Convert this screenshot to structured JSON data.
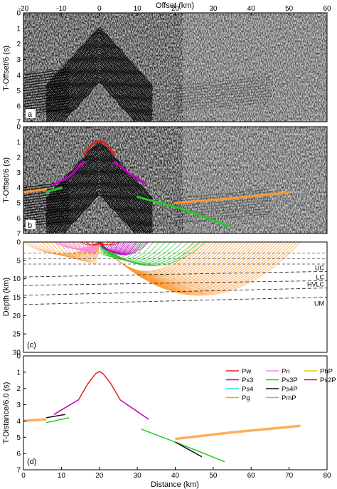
{
  "chart_data": [
    {
      "panel": "a",
      "type": "heatmap",
      "panel_label": "a",
      "xlabel": "Offset (km)",
      "ylabel": "T-Offset/6 (s)",
      "xlim": [
        -20,
        60
      ],
      "ylim": [
        7,
        0
      ],
      "xticks": [
        -20,
        -10,
        0,
        10,
        20,
        30,
        40,
        50,
        60
      ],
      "yticks": [
        0,
        1,
        2,
        3,
        4,
        5,
        6,
        7
      ]
    },
    {
      "panel": "b",
      "type": "heatmap",
      "panel_label": "b",
      "ylabel": "T-Offset/6 (s)",
      "xlim": [
        -20,
        60
      ],
      "ylim": [
        7,
        0
      ],
      "yticks": [
        0,
        1,
        2,
        3,
        4,
        5,
        6,
        7
      ],
      "picks": [
        {
          "name": "Pw",
          "color": "#e02020",
          "x": [
            -4,
            -2,
            -1,
            0,
            1,
            2,
            4
          ],
          "y": [
            1.8,
            1.2,
            1.0,
            0.95,
            1.0,
            1.2,
            1.8
          ]
        },
        {
          "name": "Ps3",
          "color": "#c000c0",
          "x": [
            -12,
            -8,
            -4
          ],
          "y": [
            3.8,
            3.3,
            2.3
          ]
        },
        {
          "name": "Ps3-right",
          "color": "#c000c0",
          "x": [
            4,
            8,
            12
          ],
          "y": [
            2.3,
            3.1,
            3.7
          ]
        },
        {
          "name": "Ps3P",
          "color": "#22cc22",
          "x": [
            -14,
            -10
          ],
          "y": [
            4.3,
            4.0
          ]
        },
        {
          "name": "Pg",
          "color": "#ff9933",
          "x": [
            -20,
            -14
          ],
          "y": [
            4.3,
            4.1
          ]
        },
        {
          "name": "Ps3P-far",
          "color": "#22cc22",
          "x": [
            10,
            22,
            34
          ],
          "y": [
            4.6,
            5.4,
            6.5
          ]
        },
        {
          "name": "Pg-far",
          "color": "#ff9933",
          "x": [
            20,
            35,
            50
          ],
          "y": [
            5.0,
            4.7,
            4.3
          ]
        }
      ]
    },
    {
      "panel": "c",
      "type": "line",
      "panel_label": "(c)",
      "ylabel": "Depth (km)",
      "xlim": [
        0,
        80
      ],
      "ylim": [
        30,
        0
      ],
      "yticks": [
        0,
        5,
        10,
        15,
        20,
        25,
        30
      ],
      "layers": [
        {
          "label": "UC",
          "x": [
            0,
            80
          ],
          "y": [
            9.5,
            8.0
          ]
        },
        {
          "label": "LC",
          "x": [
            0,
            80
          ],
          "y": [
            11.8,
            10.5
          ]
        },
        {
          "label": "HVLC",
          "x": [
            0,
            80
          ],
          "y": [
            14.5,
            12.5
          ]
        },
        {
          "label": "UM",
          "x": [
            0,
            80
          ],
          "y": [
            17.0,
            15.0
          ]
        }
      ],
      "shallow_layers": [
        {
          "x": [
            0,
            80
          ],
          "y": [
            3.0,
            3.0
          ]
        },
        {
          "x": [
            0,
            80
          ],
          "y": [
            4.5,
            4.5
          ]
        },
        {
          "x": [
            0,
            80
          ],
          "y": [
            6.0,
            6.0
          ]
        }
      ],
      "ray_fans": [
        {
          "name": "Pg-left",
          "color": "#ff9933",
          "source": 20,
          "x_start": 0,
          "x_end": 18,
          "depth": 6
        },
        {
          "name": "Pg-right",
          "color": "#ff9933",
          "source": 20,
          "x_start": 45,
          "x_end": 73,
          "depth": 14.5
        },
        {
          "name": "Ps3P",
          "color": "#22cc22",
          "source": 20,
          "x_start": 22,
          "x_end": 48,
          "depth": 6.5
        },
        {
          "name": "Ps3",
          "color": "#c000c0",
          "source": 20,
          "x_start": 23,
          "x_end": 33,
          "depth": 3.5
        },
        {
          "name": "Pn",
          "color": "#ff88dd",
          "source": 20,
          "x_start": 8,
          "x_end": 17,
          "depth": 3.2
        }
      ]
    },
    {
      "panel": "d",
      "type": "line",
      "panel_label": "(d)",
      "xlabel": "Distance (km)",
      "ylabel": "T-Distance/6.0 (s)",
      "xlim": [
        0,
        80
      ],
      "ylim": [
        7,
        0
      ],
      "xticks": [
        0,
        10,
        20,
        30,
        40,
        50,
        60,
        70,
        80
      ],
      "yticks": [
        0,
        1,
        2,
        3,
        4,
        5,
        6,
        7
      ],
      "legend": {
        "placement": "top-right",
        "entries": [
          {
            "name": "Pw",
            "color": "#e02020"
          },
          {
            "name": "Pn",
            "color": "#ff88dd"
          },
          {
            "name": "PhP",
            "color": "#ddcc00"
          },
          {
            "name": "Ps3",
            "color": "#c000c0"
          },
          {
            "name": "Ps3P",
            "color": "#22cc22"
          },
          {
            "name": "Ps2P",
            "color": "#a02080"
          },
          {
            "name": "Ps4",
            "color": "#33dddd"
          },
          {
            "name": "Ps4P",
            "color": "#111111"
          },
          {
            "name": "Pg",
            "color": "#ff9933"
          },
          {
            "name": "PmP",
            "color": "#99cc33"
          }
        ]
      },
      "series": [
        {
          "name": "Pw",
          "color": "#e02020",
          "x": [
            14.5,
            17,
            19,
            20,
            21,
            23,
            25.5
          ],
          "y": [
            2.7,
            1.7,
            1.1,
            0.95,
            1.1,
            1.7,
            2.7
          ]
        },
        {
          "name": "Ps3",
          "color": "#c000c0",
          "x": [
            8,
            14.5
          ],
          "y": [
            3.6,
            2.7
          ]
        },
        {
          "name": "Ps3-right",
          "color": "#c000c0",
          "x": [
            25.5,
            33
          ],
          "y": [
            2.7,
            3.9
          ]
        },
        {
          "name": "Ps3P",
          "color": "#22cc22",
          "x": [
            6,
            12
          ],
          "y": [
            4.1,
            3.8
          ]
        },
        {
          "name": "Ps3P-far",
          "color": "#22cc22",
          "x": [
            31,
            40,
            53
          ],
          "y": [
            4.5,
            5.3,
            6.5
          ]
        },
        {
          "name": "Ps4P",
          "color": "#111111",
          "x": [
            6,
            11
          ],
          "y": [
            3.8,
            3.6
          ]
        },
        {
          "name": "Ps4P-far",
          "color": "#111111",
          "x": [
            40,
            47
          ],
          "y": [
            5.3,
            6.2
          ]
        },
        {
          "name": "Pg",
          "color": "#ff9933",
          "x": [
            0,
            6
          ],
          "y": [
            4.0,
            3.9
          ]
        },
        {
          "name": "Pg-far",
          "color": "#ff9933",
          "x": [
            40,
            55,
            73
          ],
          "y": [
            5.1,
            4.7,
            4.3
          ]
        }
      ]
    }
  ]
}
